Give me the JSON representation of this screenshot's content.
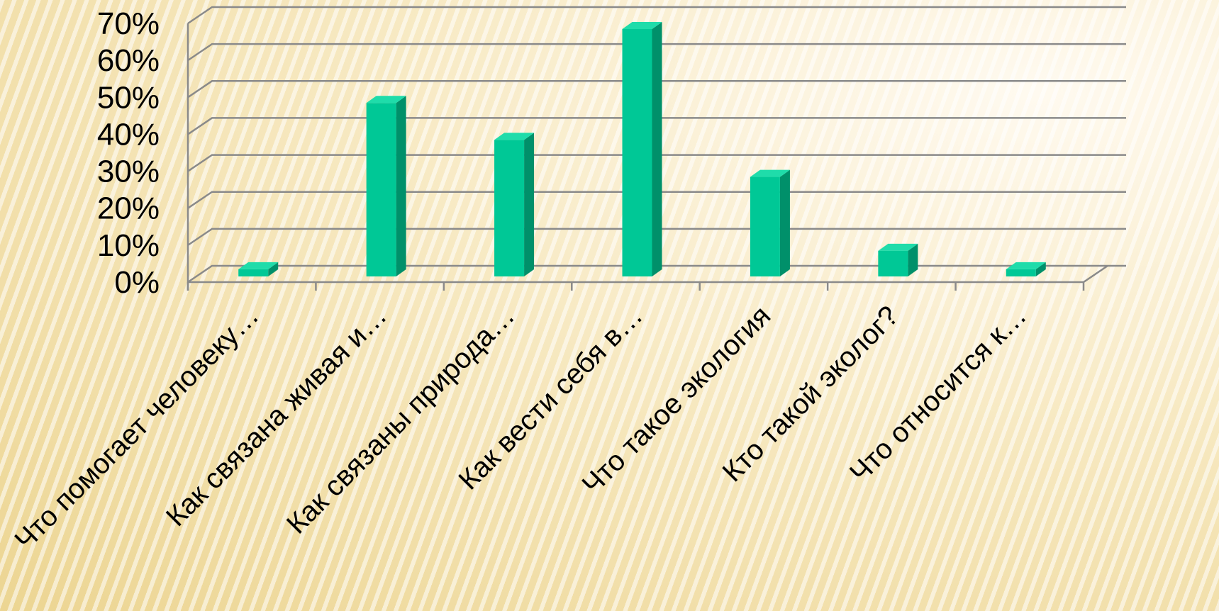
{
  "chart_data": {
    "type": "bar",
    "categories": [
      "Что помогает человеку…",
      "Как связана живая и…",
      "Как связаны природа…",
      "Как вести себя в…",
      "Что такое экология",
      "Кто такой эколог?",
      "Что относится к…"
    ],
    "series": [
      {
        "values": [
          5,
          50,
          40,
          70,
          30,
          10,
          5
        ]
      }
    ],
    "y_ticks": [
      "0%",
      "10%",
      "20%",
      "30%",
      "40%",
      "50%",
      "60%",
      "70%"
    ],
    "ylim": [
      0,
      70
    ],
    "grid": true,
    "style": "3d-column",
    "colors": {
      "bar_front": "#00c896",
      "bar_side": "#00906a",
      "bar_top": "#1fdcaa",
      "gridline": "#8a8a8a",
      "background": "#f3e0a6"
    }
  }
}
